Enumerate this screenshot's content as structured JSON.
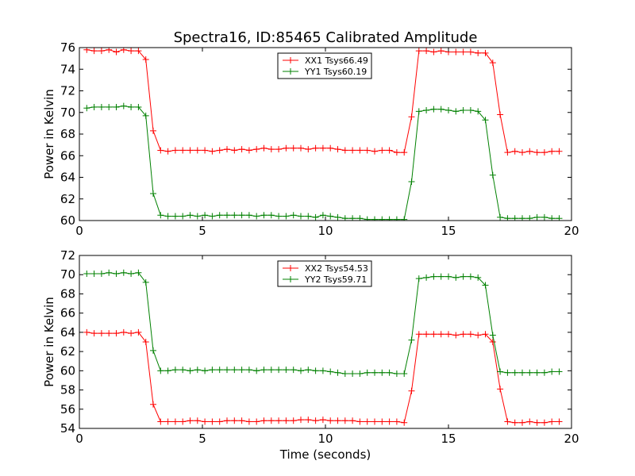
{
  "figure": {
    "title": "Spectra16, ID:85465 Calibrated Amplitude",
    "xlabel": "Time (seconds)"
  },
  "chart_data": [
    {
      "type": "line",
      "title": "Spectra16, ID:85465 Calibrated Amplitude",
      "xlabel": "",
      "ylabel": "Power in Kelvin",
      "xlim": [
        0,
        20
      ],
      "ylim": [
        60,
        76
      ],
      "xticks": [
        0,
        5,
        10,
        15,
        20
      ],
      "yticks": [
        60,
        62,
        64,
        66,
        68,
        70,
        72,
        74,
        76
      ],
      "grid": false,
      "legend_position": "upper center",
      "marker": "+",
      "series": [
        {
          "name": "XX1 Tsys66.49",
          "color": "#ff0000",
          "x": [
            0.3,
            0.6,
            0.9,
            1.2,
            1.5,
            1.8,
            2.1,
            2.4,
            2.7,
            3.0,
            3.3,
            3.6,
            3.9,
            4.2,
            4.5,
            4.8,
            5.1,
            5.4,
            5.7,
            6.0,
            6.3,
            6.6,
            6.9,
            7.2,
            7.5,
            7.8,
            8.1,
            8.4,
            8.7,
            9.0,
            9.3,
            9.6,
            9.9,
            10.2,
            10.5,
            10.8,
            11.1,
            11.4,
            11.7,
            12.0,
            12.3,
            12.6,
            12.9,
            13.2,
            13.5,
            13.8,
            14.1,
            14.4,
            14.7,
            15.0,
            15.3,
            15.6,
            15.9,
            16.2,
            16.5,
            16.8,
            17.1,
            17.4,
            17.7,
            18.0,
            18.3,
            18.6,
            18.9,
            19.2,
            19.5
          ],
          "y": [
            75.8,
            75.7,
            75.7,
            75.8,
            75.6,
            75.8,
            75.7,
            75.7,
            74.9,
            68.3,
            66.5,
            66.4,
            66.5,
            66.5,
            66.5,
            66.5,
            66.5,
            66.4,
            66.5,
            66.6,
            66.5,
            66.6,
            66.5,
            66.6,
            66.7,
            66.6,
            66.6,
            66.7,
            66.7,
            66.7,
            66.6,
            66.7,
            66.7,
            66.7,
            66.6,
            66.5,
            66.5,
            66.5,
            66.5,
            66.4,
            66.5,
            66.5,
            66.3,
            66.3,
            69.6,
            75.7,
            75.7,
            75.6,
            75.7,
            75.6,
            75.6,
            75.6,
            75.6,
            75.5,
            75.5,
            74.6,
            69.8,
            66.3,
            66.4,
            66.3,
            66.4,
            66.3,
            66.3,
            66.4,
            66.4
          ]
        },
        {
          "name": "YY1 Tsys60.19",
          "color": "#008000",
          "x": [
            0.3,
            0.6,
            0.9,
            1.2,
            1.5,
            1.8,
            2.1,
            2.4,
            2.7,
            3.0,
            3.3,
            3.6,
            3.9,
            4.2,
            4.5,
            4.8,
            5.1,
            5.4,
            5.7,
            6.0,
            6.3,
            6.6,
            6.9,
            7.2,
            7.5,
            7.8,
            8.1,
            8.4,
            8.7,
            9.0,
            9.3,
            9.6,
            9.9,
            10.2,
            10.5,
            10.8,
            11.1,
            11.4,
            11.7,
            12.0,
            12.3,
            12.6,
            12.9,
            13.2,
            13.5,
            13.8,
            14.1,
            14.4,
            14.7,
            15.0,
            15.3,
            15.6,
            15.9,
            16.2,
            16.5,
            16.8,
            17.1,
            17.4,
            17.7,
            18.0,
            18.3,
            18.6,
            18.9,
            19.2,
            19.5
          ],
          "y": [
            70.4,
            70.5,
            70.5,
            70.5,
            70.5,
            70.6,
            70.5,
            70.5,
            69.7,
            62.5,
            60.5,
            60.4,
            60.4,
            60.4,
            60.5,
            60.4,
            60.5,
            60.4,
            60.5,
            60.5,
            60.5,
            60.5,
            60.5,
            60.4,
            60.5,
            60.5,
            60.4,
            60.4,
            60.5,
            60.4,
            60.4,
            60.3,
            60.5,
            60.4,
            60.3,
            60.2,
            60.2,
            60.2,
            60.1,
            60.1,
            60.1,
            60.1,
            60.1,
            60.1,
            63.6,
            70.1,
            70.2,
            70.3,
            70.3,
            70.2,
            70.1,
            70.2,
            70.2,
            70.1,
            69.3,
            64.2,
            60.3,
            60.2,
            60.2,
            60.2,
            60.2,
            60.3,
            60.3,
            60.2,
            60.2
          ]
        }
      ]
    },
    {
      "type": "line",
      "title": "",
      "xlabel": "Time (seconds)",
      "ylabel": "Power in Kelvin",
      "xlim": [
        0,
        20
      ],
      "ylim": [
        54,
        72
      ],
      "xticks": [
        0,
        5,
        10,
        15,
        20
      ],
      "yticks": [
        54,
        56,
        58,
        60,
        62,
        64,
        66,
        68,
        70,
        72
      ],
      "grid": false,
      "legend_position": "upper center",
      "marker": "+",
      "series": [
        {
          "name": "XX2 Tsys54.53",
          "color": "#ff0000",
          "x": [
            0.3,
            0.6,
            0.9,
            1.2,
            1.5,
            1.8,
            2.1,
            2.4,
            2.7,
            3.0,
            3.3,
            3.6,
            3.9,
            4.2,
            4.5,
            4.8,
            5.1,
            5.4,
            5.7,
            6.0,
            6.3,
            6.6,
            6.9,
            7.2,
            7.5,
            7.8,
            8.1,
            8.4,
            8.7,
            9.0,
            9.3,
            9.6,
            9.9,
            10.2,
            10.5,
            10.8,
            11.1,
            11.4,
            11.7,
            12.0,
            12.3,
            12.6,
            12.9,
            13.2,
            13.5,
            13.8,
            14.1,
            14.4,
            14.7,
            15.0,
            15.3,
            15.6,
            15.9,
            16.2,
            16.5,
            16.8,
            17.1,
            17.4,
            17.7,
            18.0,
            18.3,
            18.6,
            18.9,
            19.2,
            19.5
          ],
          "y": [
            64.0,
            63.9,
            63.9,
            63.9,
            63.9,
            64.0,
            63.9,
            64.0,
            63.0,
            56.5,
            54.7,
            54.7,
            54.7,
            54.7,
            54.8,
            54.8,
            54.7,
            54.7,
            54.7,
            54.8,
            54.8,
            54.8,
            54.7,
            54.7,
            54.8,
            54.8,
            54.8,
            54.8,
            54.8,
            54.9,
            54.9,
            54.8,
            54.9,
            54.8,
            54.8,
            54.8,
            54.8,
            54.7,
            54.7,
            54.7,
            54.7,
            54.7,
            54.7,
            54.6,
            57.9,
            63.8,
            63.8,
            63.8,
            63.8,
            63.8,
            63.7,
            63.8,
            63.8,
            63.7,
            63.8,
            63.0,
            58.1,
            54.7,
            54.6,
            54.6,
            54.7,
            54.6,
            54.6,
            54.7,
            54.7
          ]
        },
        {
          "name": "YY2 Tsys59.71",
          "color": "#008000",
          "x": [
            0.3,
            0.6,
            0.9,
            1.2,
            1.5,
            1.8,
            2.1,
            2.4,
            2.7,
            3.0,
            3.3,
            3.6,
            3.9,
            4.2,
            4.5,
            4.8,
            5.1,
            5.4,
            5.7,
            6.0,
            6.3,
            6.6,
            6.9,
            7.2,
            7.5,
            7.8,
            8.1,
            8.4,
            8.7,
            9.0,
            9.3,
            9.6,
            9.9,
            10.2,
            10.5,
            10.8,
            11.1,
            11.4,
            11.7,
            12.0,
            12.3,
            12.6,
            12.9,
            13.2,
            13.5,
            13.8,
            14.1,
            14.4,
            14.7,
            15.0,
            15.3,
            15.6,
            15.9,
            16.2,
            16.5,
            16.8,
            17.1,
            17.4,
            17.7,
            18.0,
            18.3,
            18.6,
            18.9,
            19.2,
            19.5
          ],
          "y": [
            70.1,
            70.1,
            70.1,
            70.2,
            70.1,
            70.2,
            70.1,
            70.2,
            69.2,
            62.1,
            60.0,
            60.0,
            60.1,
            60.1,
            60.0,
            60.1,
            60.0,
            60.1,
            60.1,
            60.1,
            60.1,
            60.1,
            60.1,
            60.0,
            60.1,
            60.1,
            60.1,
            60.1,
            60.1,
            60.0,
            60.1,
            60.0,
            60.0,
            59.9,
            59.8,
            59.7,
            59.7,
            59.7,
            59.8,
            59.8,
            59.8,
            59.8,
            59.7,
            59.7,
            63.2,
            69.6,
            69.7,
            69.8,
            69.8,
            69.8,
            69.7,
            69.8,
            69.8,
            69.7,
            68.9,
            63.7,
            59.9,
            59.8,
            59.8,
            59.8,
            59.8,
            59.8,
            59.8,
            59.9,
            59.9
          ]
        }
      ]
    }
  ]
}
